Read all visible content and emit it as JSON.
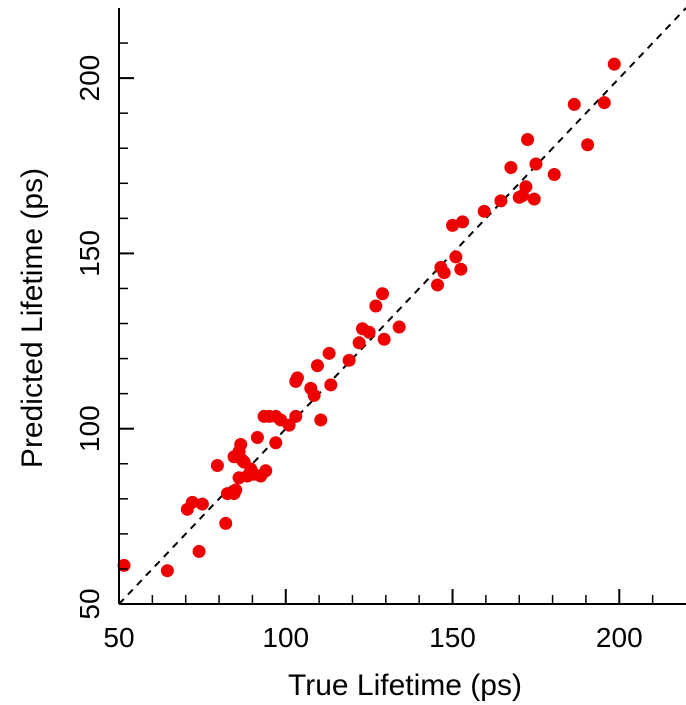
{
  "chart_data": {
    "type": "scatter",
    "xlabel": "True Lifetime (ps)",
    "ylabel": "Predicted Lifetime  (ps)",
    "xlim": [
      50,
      220
    ],
    "ylim": [
      50,
      220
    ],
    "x_major_ticks": [
      50,
      100,
      150,
      200
    ],
    "x_major_tick_labels": [
      "50",
      "100",
      "150",
      "200"
    ],
    "y_major_ticks": [
      50,
      100,
      150,
      200
    ],
    "y_major_tick_labels": [
      "50",
      "100",
      "150",
      "200"
    ],
    "minor_ticks": [
      60,
      70,
      80,
      90,
      110,
      120,
      130,
      140,
      160,
      170,
      180,
      190,
      210
    ],
    "grid": false,
    "reference_line": {
      "style": "dashed",
      "color": "#000000",
      "slope": 1,
      "intercept": 0
    },
    "marker_color": "#ee0000",
    "points": [
      [
        51.5,
        61
      ],
      [
        64.5,
        59.5
      ],
      [
        70.5,
        77
      ],
      [
        72,
        79
      ],
      [
        74,
        65
      ],
      [
        75,
        78.5
      ],
      [
        79.5,
        89.5
      ],
      [
        82,
        73
      ],
      [
        82.5,
        81.5
      ],
      [
        84.5,
        81.5
      ],
      [
        84.5,
        92
      ],
      [
        85,
        82.5
      ],
      [
        86,
        86
      ],
      [
        86,
        93.5
      ],
      [
        86.5,
        95.5
      ],
      [
        87,
        91
      ],
      [
        87.5,
        90.5
      ],
      [
        88.5,
        86.5
      ],
      [
        89.5,
        88.5
      ],
      [
        90.5,
        87
      ],
      [
        91.5,
        97.5
      ],
      [
        92.5,
        86.5
      ],
      [
        93.5,
        103.5
      ],
      [
        94,
        88
      ],
      [
        95,
        103.5
      ],
      [
        97,
        103.5
      ],
      [
        97,
        96
      ],
      [
        98.5,
        102.5
      ],
      [
        101,
        101
      ],
      [
        103,
        103.5
      ],
      [
        103,
        113.5
      ],
      [
        103.5,
        114.5
      ],
      [
        107.5,
        111.5
      ],
      [
        108.5,
        109.5
      ],
      [
        109.5,
        118
      ],
      [
        110.5,
        102.5
      ],
      [
        113,
        121.5
      ],
      [
        113.5,
        112.5
      ],
      [
        119,
        119.5
      ],
      [
        122,
        124.5
      ],
      [
        123,
        128.5
      ],
      [
        125,
        127.5
      ],
      [
        127,
        135
      ],
      [
        129,
        138.5
      ],
      [
        129.5,
        125.5
      ],
      [
        134,
        129
      ],
      [
        145.5,
        141
      ],
      [
        146.5,
        146
      ],
      [
        147.5,
        144.5
      ],
      [
        150,
        158
      ],
      [
        151,
        149
      ],
      [
        152.5,
        145.5
      ],
      [
        153,
        159
      ],
      [
        159.5,
        162
      ],
      [
        164.5,
        165
      ],
      [
        167.5,
        174.5
      ],
      [
        170,
        166
      ],
      [
        171,
        166.5
      ],
      [
        172,
        169
      ],
      [
        172.5,
        182.5
      ],
      [
        174.5,
        165.5
      ],
      [
        175,
        175.5
      ],
      [
        180.5,
        172.5
      ],
      [
        186.5,
        192.5
      ],
      [
        190.5,
        181
      ],
      [
        195.5,
        193
      ],
      [
        198.5,
        204
      ]
    ]
  }
}
